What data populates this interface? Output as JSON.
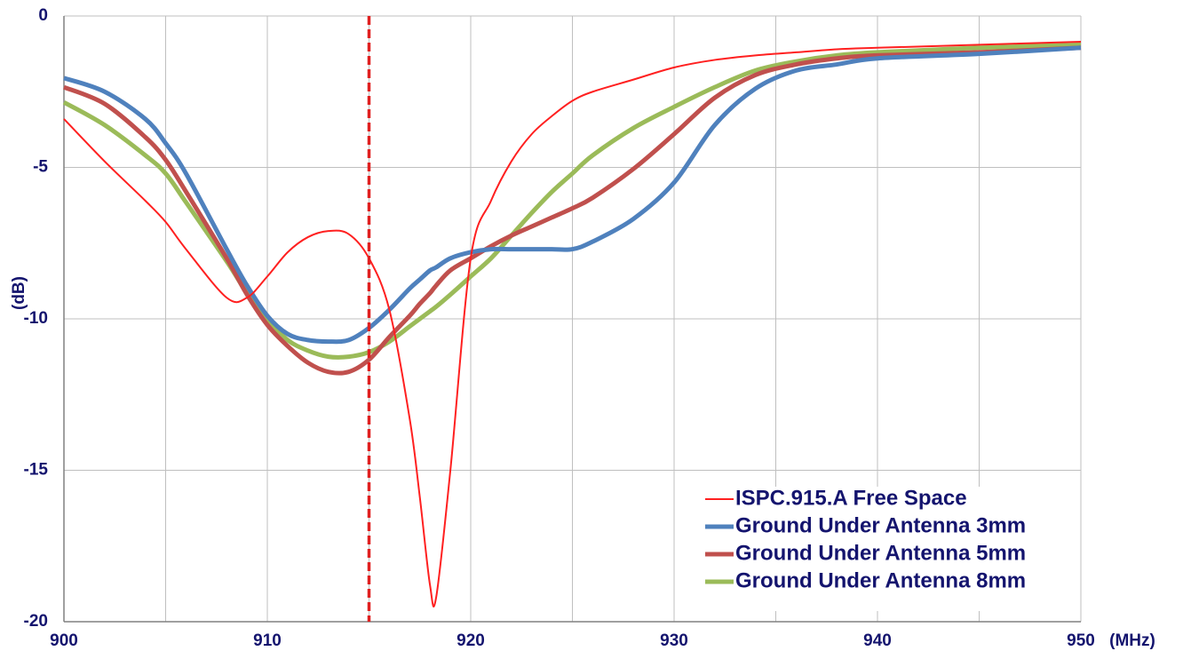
{
  "chart_data": {
    "type": "line",
    "y_label": "(dB)",
    "x_label": "(MHz)",
    "x": [
      900,
      902,
      904,
      905,
      906,
      908,
      909,
      910,
      911,
      912,
      913,
      914,
      915,
      916,
      917,
      917.5,
      918,
      918.3,
      919,
      920,
      921,
      922,
      923,
      924,
      925,
      926,
      928,
      930,
      932,
      934,
      936,
      938,
      940,
      945,
      950
    ],
    "series": [
      {
        "name": "ISPC.915.A Free Space",
        "color": "#ff2020",
        "width": 2,
        "values": [
          -3.4,
          -4.8,
          -6.1,
          -6.8,
          -7.7,
          -9.3,
          -9.3,
          -8.6,
          -7.8,
          -7.3,
          -7.1,
          -7.2,
          -8.0,
          -9.7,
          -13.3,
          -15.9,
          -18.8,
          -19.2,
          -15.0,
          -8.0,
          -6.1,
          -4.8,
          -3.9,
          -3.3,
          -2.8,
          -2.5,
          -2.1,
          -1.7,
          -1.45,
          -1.3,
          -1.2,
          -1.1,
          -1.05,
          -0.95,
          -0.85
        ]
      },
      {
        "name": "Ground Under Antenna 3mm",
        "color": "#4f81bd",
        "width": 5,
        "values": [
          -2.05,
          -2.5,
          -3.4,
          -4.2,
          -5.2,
          -7.7,
          -8.9,
          -9.9,
          -10.5,
          -10.7,
          -10.75,
          -10.7,
          -10.3,
          -9.7,
          -9.0,
          -8.7,
          -8.4,
          -8.3,
          -8.0,
          -7.8,
          -7.7,
          -7.7,
          -7.7,
          -7.7,
          -7.7,
          -7.45,
          -6.7,
          -5.5,
          -3.6,
          -2.4,
          -1.8,
          -1.6,
          -1.4,
          -1.25,
          -1.05
        ]
      },
      {
        "name": "Ground Under Antenna 5mm",
        "color": "#c0504d",
        "width": 5,
        "values": [
          -2.35,
          -2.9,
          -4.0,
          -4.75,
          -5.8,
          -8.0,
          -9.2,
          -10.2,
          -10.9,
          -11.45,
          -11.75,
          -11.75,
          -11.35,
          -10.6,
          -9.9,
          -9.5,
          -9.15,
          -8.9,
          -8.4,
          -8.0,
          -7.6,
          -7.25,
          -6.95,
          -6.65,
          -6.35,
          -6.0,
          -5.05,
          -3.9,
          -2.7,
          -1.95,
          -1.6,
          -1.4,
          -1.3,
          -1.2,
          -1.05
        ]
      },
      {
        "name": "Ground Under Antenna 8mm",
        "color": "#9bbb59",
        "width": 5,
        "values": [
          -2.85,
          -3.6,
          -4.6,
          -5.2,
          -6.15,
          -8.1,
          -9.15,
          -10.0,
          -10.7,
          -11.05,
          -11.25,
          -11.25,
          -11.1,
          -10.75,
          -10.25,
          -10.0,
          -9.75,
          -9.6,
          -9.2,
          -8.6,
          -8.0,
          -7.25,
          -6.5,
          -5.8,
          -5.2,
          -4.6,
          -3.7,
          -3.0,
          -2.35,
          -1.8,
          -1.5,
          -1.3,
          -1.2,
          -1.05,
          -0.95
        ]
      }
    ],
    "xlim": [
      900,
      950
    ],
    "ylim": [
      -20,
      0
    ],
    "xticks": [
      900,
      910,
      920,
      930,
      940,
      950
    ],
    "x_minor_grid": [
      905,
      915,
      925,
      935,
      945
    ],
    "yticks": [
      0,
      -5,
      -10,
      -15,
      -20
    ],
    "grid": true,
    "vline": {
      "x": 915,
      "color": "#e02020"
    },
    "legend": "lower right"
  }
}
